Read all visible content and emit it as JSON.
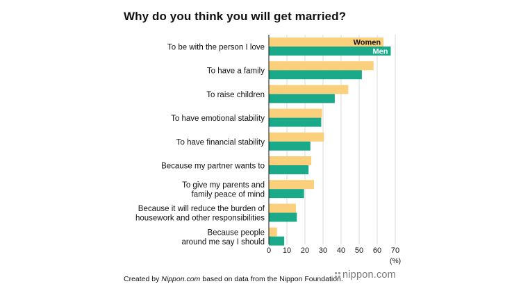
{
  "page": {
    "title": "Why do you think you will get married?",
    "credit_prefix": "Created by ",
    "credit_site": "Nippon.com",
    "credit_suffix": " based on data from the Nippon Foundation.",
    "logo_text": "nippon.com"
  },
  "chart_data": {
    "type": "bar",
    "orientation": "horizontal",
    "title": "Why do you think you will get married?",
    "xlabel": "(%)",
    "xlim": [
      0,
      70
    ],
    "xticks": [
      0,
      10,
      20,
      30,
      40,
      50,
      60,
      70
    ],
    "grid": true,
    "categories": [
      [
        "To be with the person I love"
      ],
      [
        "To have a family"
      ],
      [
        "To raise children"
      ],
      [
        "To have emotional stability"
      ],
      [
        "To have financial stability"
      ],
      [
        "Because my partner wants to"
      ],
      [
        "To give my parents and",
        "family peace of mind"
      ],
      [
        "Because it will reduce the burden of",
        "housework and other responsibilities"
      ],
      [
        "Because people",
        "around me say I should"
      ]
    ],
    "series": [
      {
        "name": "Women",
        "color": "#fbd07c",
        "values": [
          63.5,
          58,
          44,
          29.5,
          30.5,
          23.5,
          25,
          15,
          4.5
        ]
      },
      {
        "name": "Men",
        "color": "#1aaa8a",
        "values": [
          67.5,
          51.5,
          36.5,
          29,
          23,
          22,
          19.5,
          15.5,
          8.5
        ]
      }
    ],
    "legend": "inside-top-bar"
  }
}
